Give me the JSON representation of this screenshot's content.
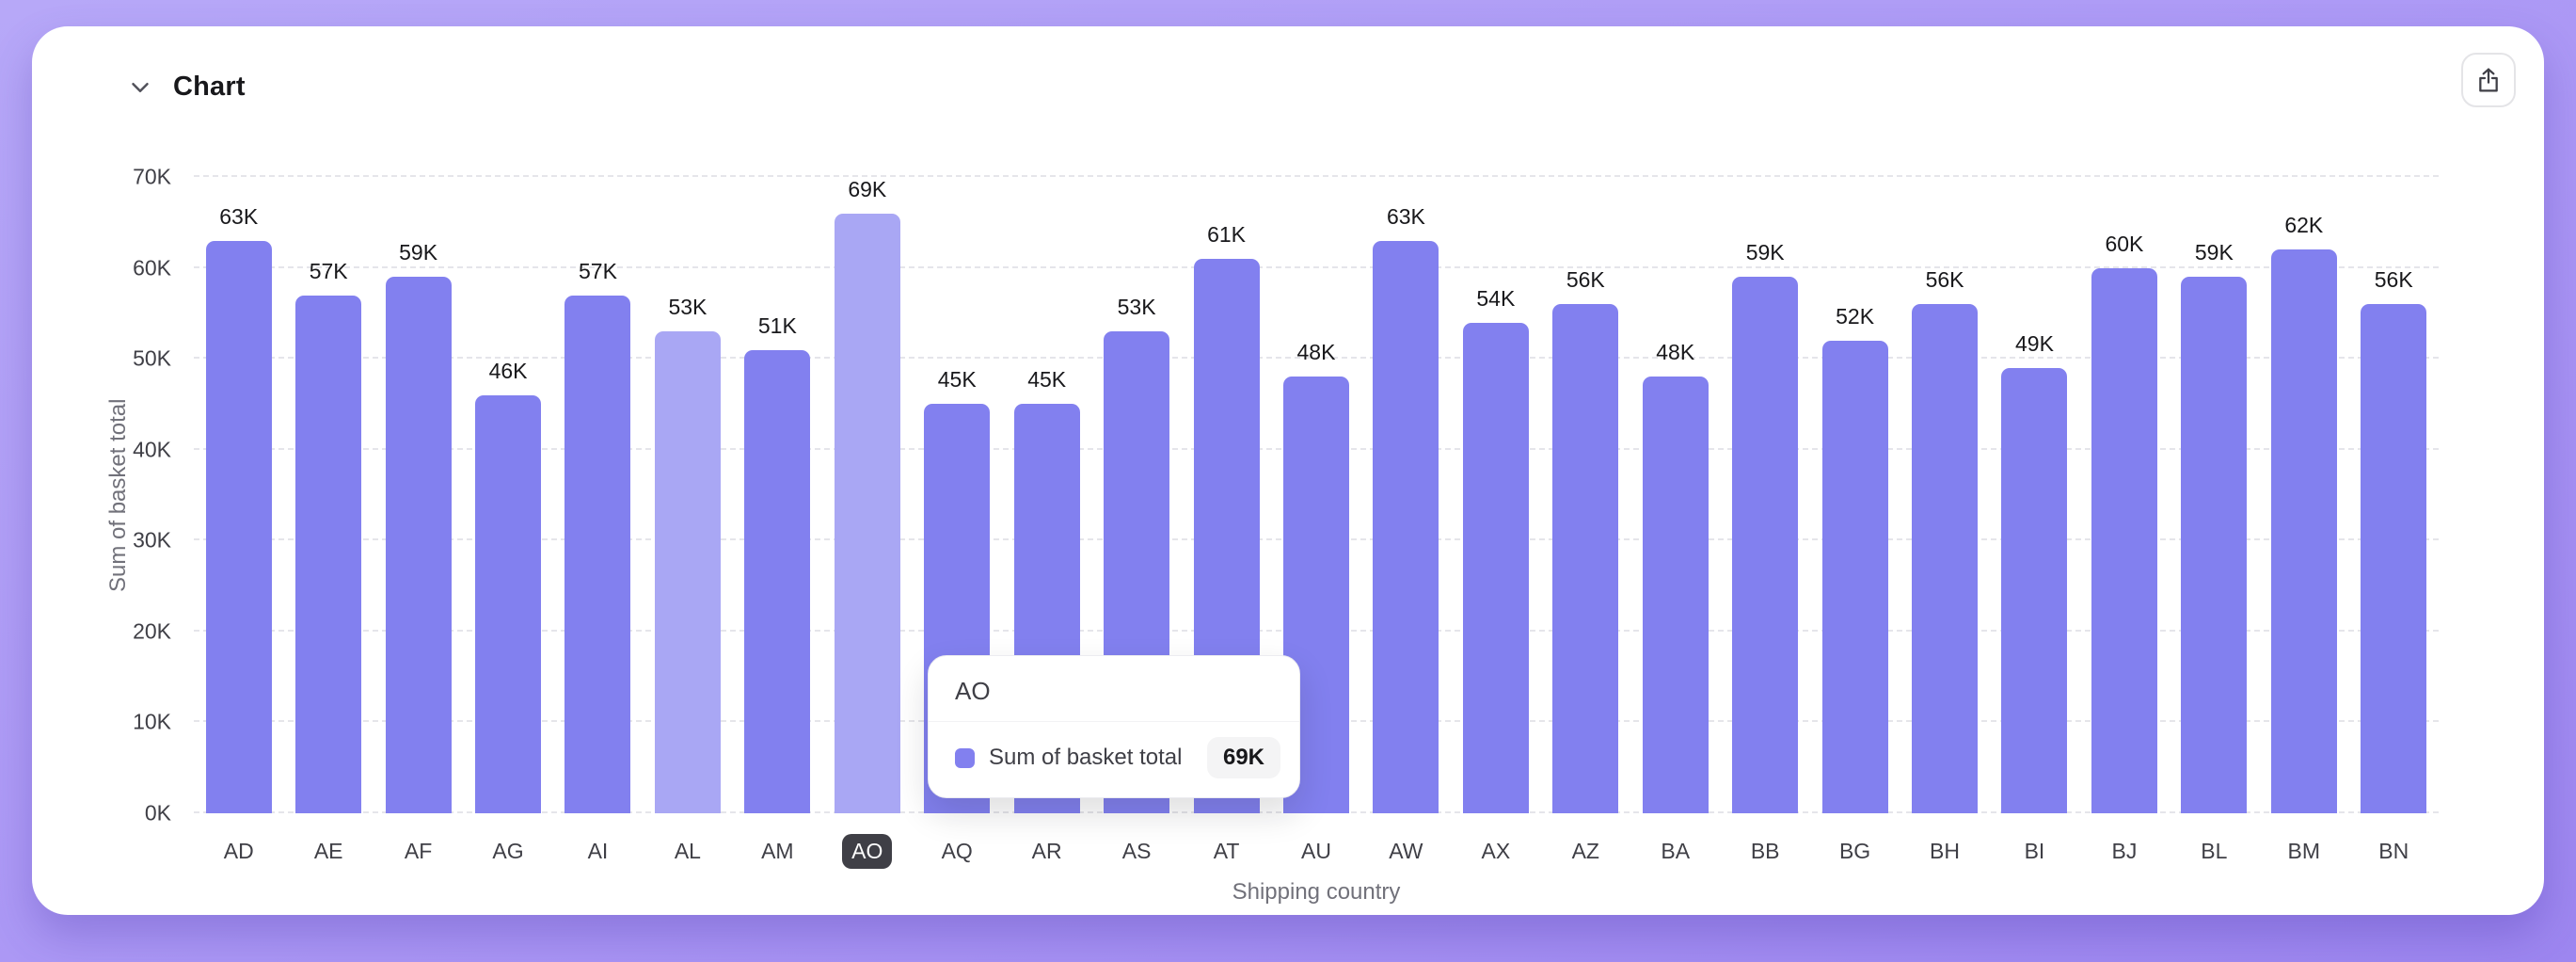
{
  "page": {
    "background_accent": "#ab97f5"
  },
  "card": {
    "title": "Chart"
  },
  "chart_data": {
    "type": "bar",
    "title": "Chart",
    "xlabel": "Shipping country",
    "ylabel": "Sum of basket total",
    "ylim": [
      0,
      70000
    ],
    "y_ticks": [
      "0K",
      "10K",
      "20K",
      "30K",
      "40K",
      "50K",
      "60K",
      "70K"
    ],
    "grid": "dashed-horizontal",
    "legend_position": "none",
    "categories": [
      "AD",
      "AE",
      "AF",
      "AG",
      "AI",
      "AL",
      "AM",
      "AO",
      "AQ",
      "AR",
      "AS",
      "AT",
      "AU",
      "AW",
      "AX",
      "AZ",
      "BA",
      "BB",
      "BG",
      "BH",
      "BI",
      "BJ",
      "BL",
      "BM",
      "BN"
    ],
    "values": [
      63000,
      57000,
      59000,
      46000,
      57000,
      53000,
      51000,
      69000,
      45000,
      45000,
      53000,
      61000,
      48000,
      63000,
      54000,
      56000,
      48000,
      59000,
      52000,
      56000,
      49000,
      60000,
      59000,
      62000,
      56000
    ],
    "labels": [
      "63K",
      "57K",
      "59K",
      "46K",
      "57K",
      "53K",
      "51K",
      "69K",
      "45K",
      "45K",
      "53K",
      "61K",
      "48K",
      "63K",
      "54K",
      "56K",
      "48K",
      "59K",
      "52K",
      "56K",
      "49K",
      "60K",
      "59K",
      "62K",
      "56K"
    ],
    "highlighted": [
      "AL",
      "AO"
    ],
    "selected_category": "AO",
    "bar_color": "#8280ef",
    "bar_color_highlight": "#a9a7f4",
    "selected_label_bg": "#3f3f46"
  },
  "tooltip": {
    "title": "AO",
    "series_label": "Sum of basket total",
    "value": "69K",
    "swatch_color": "#8280ef"
  }
}
